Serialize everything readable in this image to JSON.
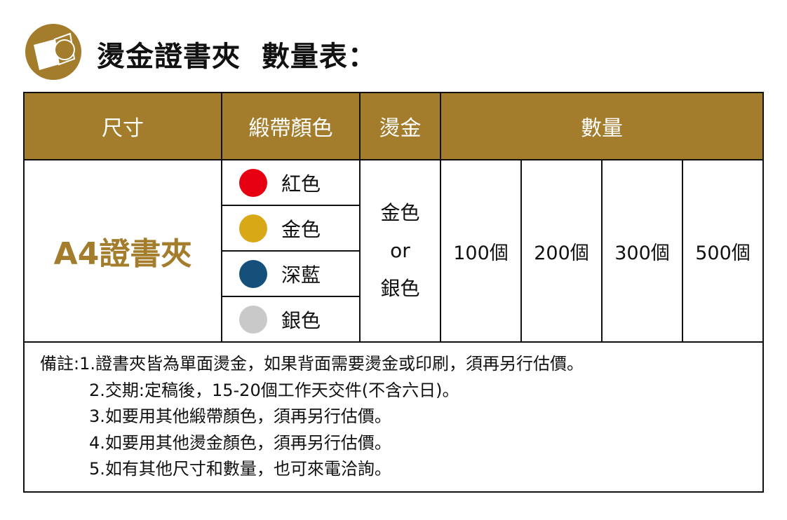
{
  "title": "燙金證書夾  數量表：",
  "colors": {
    "accent": "#a37c2c",
    "red": "#e60012",
    "gold": "#d9a816",
    "navy": "#15507a",
    "silver": "#c9c9c9"
  },
  "header": {
    "size": "尺寸",
    "ribbon": "緞帶顏色",
    "foil": "燙金",
    "quantity": "數量"
  },
  "product": "A4證書夾",
  "ribbons": [
    {
      "label": "紅色",
      "color": "#e60012"
    },
    {
      "label": "金色",
      "color": "#d9a816"
    },
    {
      "label": "深藍",
      "color": "#15507a"
    },
    {
      "label": "銀色",
      "color": "#c9c9c9"
    }
  ],
  "foil": {
    "line1": "金色",
    "line2": "or",
    "line3": "銀色"
  },
  "quantities": [
    "100個",
    "200個",
    "300個",
    "500個"
  ],
  "notes": [
    "備註:1.證書夾皆為單面燙金，如果背面需要燙金或印刷，須再另行估價。",
    "2.交期:定稿後，15-20個工作天交件(不含六日)。",
    "3.如要用其他緞帶顏色，須再另行估價。",
    "4.如要用其他燙金顏色，須再另行估價。",
    "5.如有其他尺寸和數量，也可來電洽詢。"
  ]
}
